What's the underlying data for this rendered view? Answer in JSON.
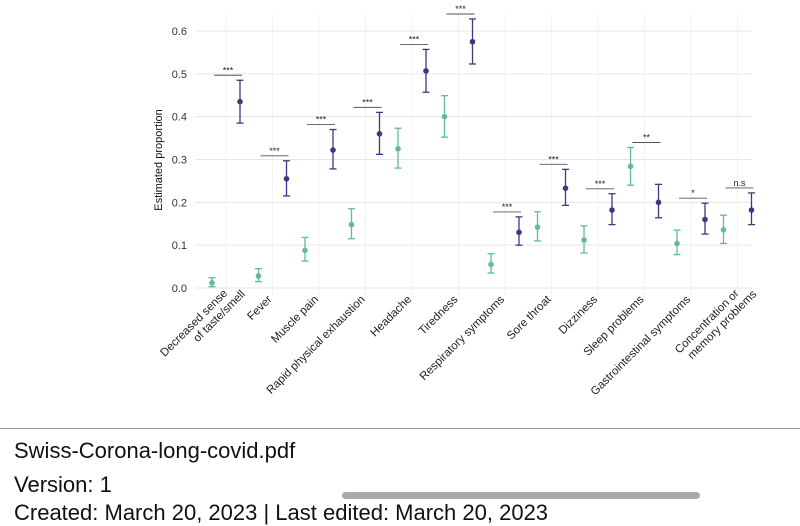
{
  "chart_data": {
    "type": "scatter",
    "subtype": "point estimates with 95% confidence intervals",
    "ylabel": "Estimated proportion",
    "xlabel": "",
    "ylim": [
      -0.02,
      0.62
    ],
    "yticks": [
      "0.0",
      "0.1",
      "0.2",
      "0.3",
      "0.4",
      "0.5",
      "0.6"
    ],
    "grid": true,
    "categories": [
      "Decreased sense of taste/smell",
      "Fever",
      "Muscle pain",
      "Rapid physical exhaustion",
      "Headache",
      "Tiredness",
      "Respiratory symptoms",
      "Sore throat",
      "Dizziness",
      "Sleep problems",
      "Gastrointestinal symptoms",
      "Concentration or memory problems"
    ],
    "tick_labels": [
      [
        "Decreased sense",
        "of taste/smell"
      ],
      [
        "Fever"
      ],
      [
        "Muscle pain"
      ],
      [
        "Rapid physical exhaustion"
      ],
      [
        "Headache"
      ],
      [
        "Tiredness"
      ],
      [
        "Respiratory symptoms"
      ],
      [
        "Sore throat"
      ],
      [
        "Dizziness"
      ],
      [
        "Sleep problems"
      ],
      [
        "Gastrointestinal symptoms"
      ],
      [
        "Concentration or",
        "memory problems"
      ]
    ],
    "series": [
      {
        "name": "group-teal",
        "color": "#63b99e",
        "values": [
          0.012,
          0.028,
          0.088,
          0.148,
          0.325,
          0.4,
          0.055,
          0.142,
          0.112,
          0.284,
          0.104,
          0.136
        ],
        "lower": [
          0.003,
          0.015,
          0.063,
          0.115,
          0.28,
          0.352,
          0.035,
          0.11,
          0.082,
          0.24,
          0.078,
          0.104
        ],
        "upper": [
          0.024,
          0.045,
          0.118,
          0.185,
          0.373,
          0.449,
          0.08,
          0.178,
          0.145,
          0.328,
          0.135,
          0.17
        ]
      },
      {
        "name": "group-navy",
        "color": "#3d3880",
        "values": [
          0.435,
          0.255,
          0.322,
          0.36,
          0.507,
          0.575,
          0.13,
          0.233,
          0.182,
          0.2,
          0.16,
          0.182
        ],
        "lower": [
          0.385,
          0.215,
          0.278,
          0.312,
          0.457,
          0.523,
          0.1,
          0.193,
          0.148,
          0.164,
          0.126,
          0.148
        ],
        "upper": [
          0.485,
          0.297,
          0.37,
          0.41,
          0.557,
          0.628,
          0.166,
          0.277,
          0.22,
          0.242,
          0.198,
          0.222
        ]
      }
    ],
    "significance": [
      "***",
      "***",
      "***",
      "***",
      "***",
      "***",
      "***",
      "***",
      "***",
      "**",
      "*",
      "n.s"
    ]
  },
  "document": {
    "filename": "Swiss-Corona-long-covid.pdf",
    "version": "Version: 1",
    "date_partial": "Created: March 20, 2023 | Last edited: March 20, 2023"
  },
  "colors": {
    "teal": "#63b99e",
    "navy": "#3d3880",
    "grid": "#e6e6e6",
    "text": "#333333"
  }
}
